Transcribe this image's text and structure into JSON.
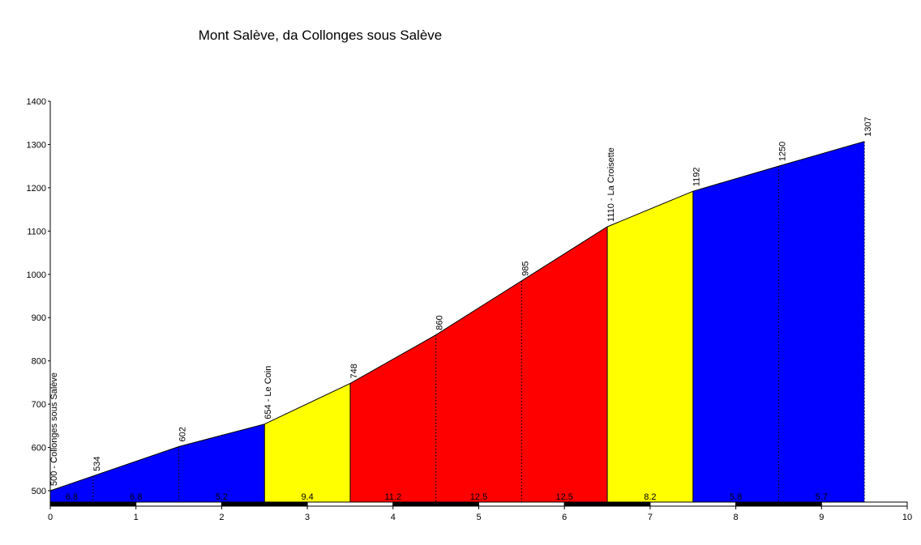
{
  "chart_data": {
    "type": "area",
    "title": "Mont Salève, da Collonges sous Salève",
    "xlabel": "",
    "ylabel": "",
    "xlim": [
      0,
      10
    ],
    "ylim": [
      470,
      1400
    ],
    "x_ticks": [
      0,
      1,
      2,
      3,
      4,
      5,
      6,
      7,
      8,
      9,
      10
    ],
    "y_ticks": [
      500,
      600,
      700,
      800,
      900,
      1000,
      1100,
      1200,
      1300,
      1400
    ],
    "profile": [
      {
        "x": 0,
        "y": 500,
        "label": "500 - Collonges sous Salève"
      },
      {
        "x": 0.5,
        "y": 534,
        "label": "534"
      },
      {
        "x": 1.5,
        "y": 602,
        "label": "602"
      },
      {
        "x": 2.5,
        "y": 654,
        "label": "654 - Le Coin"
      },
      {
        "x": 3.5,
        "y": 748,
        "label": "748"
      },
      {
        "x": 4.5,
        "y": 860,
        "label": "860"
      },
      {
        "x": 5.5,
        "y": 985,
        "label": "985"
      },
      {
        "x": 6.5,
        "y": 1110,
        "label": "1110 - La Croisette"
      },
      {
        "x": 7.5,
        "y": 1192,
        "label": "1192"
      },
      {
        "x": 8.5,
        "y": 1250,
        "label": "1250"
      },
      {
        "x": 9.5,
        "y": 1307,
        "label": "1307"
      }
    ],
    "segments": [
      {
        "from": 0,
        "to": 0.5,
        "gradient": "6.8",
        "color": "#0000ff"
      },
      {
        "from": 0.5,
        "to": 1.5,
        "gradient": "6.8",
        "color": "#0000ff"
      },
      {
        "from": 1.5,
        "to": 2.5,
        "gradient": "5.2",
        "color": "#0000ff"
      },
      {
        "from": 2.5,
        "to": 3.5,
        "gradient": "9.4",
        "color": "#ffff00"
      },
      {
        "from": 3.5,
        "to": 4.5,
        "gradient": "11.2",
        "color": "#ff0000"
      },
      {
        "from": 4.5,
        "to": 5.5,
        "gradient": "12.5",
        "color": "#ff0000"
      },
      {
        "from": 5.5,
        "to": 6.5,
        "gradient": "12.5",
        "color": "#ff0000"
      },
      {
        "from": 6.5,
        "to": 7.5,
        "gradient": "8.2",
        "color": "#ffff00"
      },
      {
        "from": 7.5,
        "to": 8.5,
        "gradient": "5.8",
        "color": "#0000ff"
      },
      {
        "from": 8.5,
        "to": 9.5,
        "gradient": "5.7",
        "color": "#0000ff"
      }
    ],
    "grid": false,
    "legend": "none"
  }
}
